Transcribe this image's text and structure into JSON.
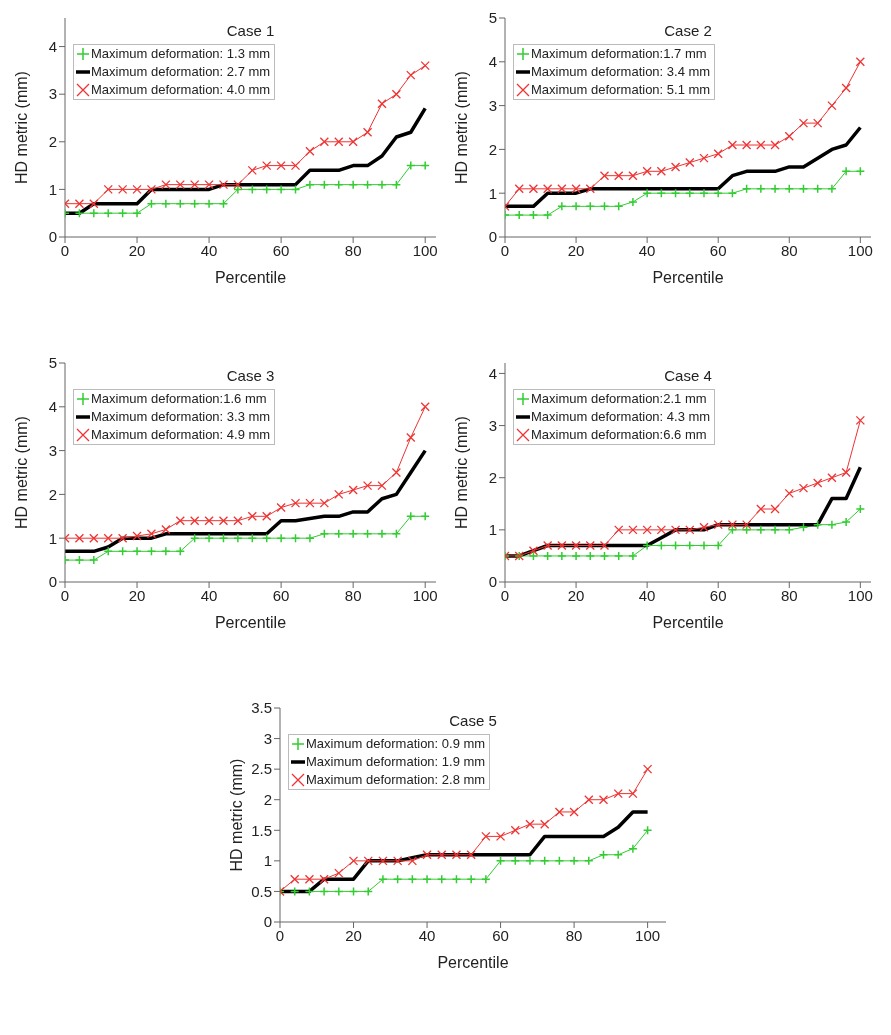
{
  "chart_data": [
    {
      "type": "line",
      "title": "Case 1",
      "xlabel": "Percentile",
      "ylabel": "HD metric (mm)",
      "legend": "top left",
      "xlim": [
        0,
        103
      ],
      "xticks": [
        0,
        20,
        40,
        60,
        80,
        100
      ],
      "ylim": [
        0,
        4.6
      ],
      "yticks": [
        0,
        1,
        2,
        3,
        4
      ],
      "x": [
        0,
        4,
        8,
        12,
        16,
        20,
        24,
        28,
        32,
        36,
        40,
        44,
        48,
        52,
        56,
        60,
        64,
        68,
        72,
        76,
        80,
        84,
        88,
        92,
        96,
        100
      ],
      "series": [
        {
          "name": "Maximum deformation: 1.3 mm",
          "color": "#33cc33",
          "marker": "plus",
          "values": [
            0.5,
            0.5,
            0.5,
            0.5,
            0.5,
            0.5,
            0.7,
            0.7,
            0.7,
            0.7,
            0.7,
            0.7,
            1.0,
            1.0,
            1.0,
            1.0,
            1.0,
            1.1,
            1.1,
            1.1,
            1.1,
            1.1,
            1.1,
            1.1,
            1.5,
            1.5
          ]
        },
        {
          "name": "Maximum deformation: 2.7 mm",
          "color": "#000000",
          "marker": "none",
          "values": [
            0.5,
            0.5,
            0.7,
            0.7,
            0.7,
            0.7,
            1.0,
            1.0,
            1.0,
            1.0,
            1.0,
            1.1,
            1.1,
            1.1,
            1.1,
            1.1,
            1.1,
            1.4,
            1.4,
            1.4,
            1.5,
            1.5,
            1.7,
            2.1,
            2.2,
            2.7
          ]
        },
        {
          "name": "Maximum deformation: 4.0 mm",
          "color": "#ee3333",
          "marker": "cross",
          "values": [
            0.7,
            0.7,
            0.7,
            1.0,
            1.0,
            1.0,
            1.0,
            1.1,
            1.1,
            1.1,
            1.1,
            1.1,
            1.1,
            1.4,
            1.5,
            1.5,
            1.5,
            1.8,
            2.0,
            2.0,
            2.0,
            2.2,
            2.8,
            3.0,
            3.4,
            3.6
          ]
        }
      ]
    },
    {
      "type": "line",
      "title": "Case 2",
      "xlabel": "Percentile",
      "ylabel": "HD metric (mm)",
      "legend": "top left",
      "xlim": [
        0,
        103
      ],
      "xticks": [
        0,
        20,
        40,
        60,
        80,
        100
      ],
      "ylim": [
        0,
        5
      ],
      "yticks": [
        0,
        1,
        2,
        3,
        4,
        5
      ],
      "x": [
        0,
        4,
        8,
        12,
        16,
        20,
        24,
        28,
        32,
        36,
        40,
        44,
        48,
        52,
        56,
        60,
        64,
        68,
        72,
        76,
        80,
        84,
        88,
        92,
        96,
        100
      ],
      "series": [
        {
          "name": "Maximum deformation:1.7 mm",
          "color": "#33cc33",
          "marker": "plus",
          "values": [
            0.5,
            0.5,
            0.5,
            0.5,
            0.7,
            0.7,
            0.7,
            0.7,
            0.7,
            0.8,
            1.0,
            1.0,
            1.0,
            1.0,
            1.0,
            1.0,
            1.0,
            1.1,
            1.1,
            1.1,
            1.1,
            1.1,
            1.1,
            1.1,
            1.5,
            1.5
          ]
        },
        {
          "name": "Maximum deformation: 3.4 mm",
          "color": "#000000",
          "marker": "none",
          "values": [
            0.7,
            0.7,
            0.7,
            1.0,
            1.0,
            1.0,
            1.1,
            1.1,
            1.1,
            1.1,
            1.1,
            1.1,
            1.1,
            1.1,
            1.1,
            1.1,
            1.4,
            1.5,
            1.5,
            1.5,
            1.6,
            1.6,
            1.8,
            2.0,
            2.1,
            2.5
          ]
        },
        {
          "name": "Maximum deformation: 5.1 mm",
          "color": "#ee3333",
          "marker": "cross",
          "values": [
            0.7,
            1.1,
            1.1,
            1.1,
            1.1,
            1.1,
            1.1,
            1.4,
            1.4,
            1.4,
            1.5,
            1.5,
            1.6,
            1.7,
            1.8,
            1.9,
            2.1,
            2.1,
            2.1,
            2.1,
            2.3,
            2.6,
            2.6,
            3.0,
            3.4,
            4.0
          ]
        }
      ]
    },
    {
      "type": "line",
      "title": "Case 3",
      "xlabel": "Percentile",
      "ylabel": "HD metric (mm)",
      "legend": "top left",
      "xlim": [
        0,
        103
      ],
      "xticks": [
        0,
        20,
        40,
        60,
        80,
        100
      ],
      "ylim": [
        0,
        5
      ],
      "yticks": [
        0,
        1,
        2,
        3,
        4,
        5
      ],
      "x": [
        0,
        4,
        8,
        12,
        16,
        20,
        24,
        28,
        32,
        36,
        40,
        44,
        48,
        52,
        56,
        60,
        64,
        68,
        72,
        76,
        80,
        84,
        88,
        92,
        96,
        100
      ],
      "series": [
        {
          "name": "Maximum deformation:1.6 mm",
          "color": "#33cc33",
          "marker": "plus",
          "values": [
            0.5,
            0.5,
            0.5,
            0.7,
            0.7,
            0.7,
            0.7,
            0.7,
            0.7,
            1.0,
            1.0,
            1.0,
            1.0,
            1.0,
            1.0,
            1.0,
            1.0,
            1.0,
            1.1,
            1.1,
            1.1,
            1.1,
            1.1,
            1.1,
            1.5,
            1.5
          ]
        },
        {
          "name": "Maximum deformation: 3.3 mm",
          "color": "#000000",
          "marker": "none",
          "values": [
            0.7,
            0.7,
            0.7,
            0.8,
            1.0,
            1.0,
            1.0,
            1.1,
            1.1,
            1.1,
            1.1,
            1.1,
            1.1,
            1.1,
            1.1,
            1.4,
            1.4,
            1.45,
            1.5,
            1.5,
            1.6,
            1.6,
            1.9,
            2.0,
            2.5,
            3.0
          ]
        },
        {
          "name": "Maximum deformation: 4.9 mm",
          "color": "#ee3333",
          "marker": "cross",
          "values": [
            1.0,
            1.0,
            1.0,
            1.0,
            1.0,
            1.05,
            1.1,
            1.2,
            1.4,
            1.4,
            1.4,
            1.4,
            1.4,
            1.5,
            1.5,
            1.7,
            1.8,
            1.8,
            1.8,
            2.0,
            2.1,
            2.2,
            2.2,
            2.5,
            3.3,
            4.0
          ]
        }
      ]
    },
    {
      "type": "line",
      "title": "Case 4",
      "xlabel": "Percentile",
      "ylabel": "HD metric (mm)",
      "legend": "top left",
      "xlim": [
        0,
        103
      ],
      "xticks": [
        0,
        20,
        40,
        60,
        80,
        100
      ],
      "ylim": [
        0,
        4.2
      ],
      "yticks": [
        0,
        1,
        2,
        3,
        4
      ],
      "x": [
        0,
        4,
        8,
        12,
        16,
        20,
        24,
        28,
        32,
        36,
        40,
        44,
        48,
        52,
        56,
        60,
        64,
        68,
        72,
        76,
        80,
        84,
        88,
        92,
        96,
        100
      ],
      "series": [
        {
          "name": "Maximum deformation:2.1 mm",
          "color": "#33cc33",
          "marker": "plus",
          "values": [
            0.5,
            0.5,
            0.5,
            0.5,
            0.5,
            0.5,
            0.5,
            0.5,
            0.5,
            0.5,
            0.7,
            0.7,
            0.7,
            0.7,
            0.7,
            0.7,
            1.0,
            1.0,
            1.0,
            1.0,
            1.0,
            1.05,
            1.1,
            1.1,
            1.15,
            1.4
          ]
        },
        {
          "name": "Maximum deformation: 4.3 mm",
          "color": "#000000",
          "marker": "none",
          "values": [
            0.5,
            0.5,
            0.6,
            0.7,
            0.7,
            0.7,
            0.7,
            0.7,
            0.7,
            0.7,
            0.7,
            0.85,
            1.0,
            1.0,
            1.0,
            1.1,
            1.1,
            1.1,
            1.1,
            1.1,
            1.1,
            1.1,
            1.1,
            1.6,
            1.6,
            2.2
          ]
        },
        {
          "name": "Maximum deformation:6.6 mm",
          "color": "#ee3333",
          "marker": "cross",
          "values": [
            0.5,
            0.5,
            0.6,
            0.7,
            0.7,
            0.7,
            0.7,
            0.7,
            1.0,
            1.0,
            1.0,
            1.0,
            1.0,
            1.0,
            1.05,
            1.1,
            1.1,
            1.1,
            1.4,
            1.4,
            1.7,
            1.8,
            1.9,
            2.0,
            2.1,
            3.1
          ]
        }
      ]
    },
    {
      "type": "line",
      "title": "Case 5",
      "xlabel": "Percentile",
      "ylabel": "HD metric (mm)",
      "legend": "top left",
      "xlim": [
        0,
        105
      ],
      "xticks": [
        0,
        20,
        40,
        60,
        80,
        100
      ],
      "ylim": [
        0,
        3.5
      ],
      "yticks": [
        0,
        0.5,
        1,
        1.5,
        2,
        2.5,
        3,
        3.5
      ],
      "x": [
        0,
        4,
        8,
        12,
        16,
        20,
        24,
        28,
        32,
        36,
        40,
        44,
        48,
        52,
        56,
        60,
        64,
        68,
        72,
        76,
        80,
        84,
        88,
        92,
        96,
        100
      ],
      "series": [
        {
          "name": "Maximum deformation: 0.9 mm",
          "color": "#33cc33",
          "marker": "plus",
          "values": [
            0.5,
            0.5,
            0.5,
            0.5,
            0.5,
            0.5,
            0.5,
            0.7,
            0.7,
            0.7,
            0.7,
            0.7,
            0.7,
            0.7,
            0.7,
            1.0,
            1.0,
            1.0,
            1.0,
            1.0,
            1.0,
            1.0,
            1.1,
            1.1,
            1.2,
            1.5
          ]
        },
        {
          "name": "Maximum deformation: 1.9 mm",
          "color": "#000000",
          "marker": "none",
          "values": [
            0.5,
            0.5,
            0.5,
            0.7,
            0.7,
            0.7,
            1.0,
            1.0,
            1.0,
            1.05,
            1.1,
            1.1,
            1.1,
            1.1,
            1.1,
            1.1,
            1.1,
            1.1,
            1.4,
            1.4,
            1.4,
            1.4,
            1.4,
            1.55,
            1.8,
            1.8
          ]
        },
        {
          "name": "Maximum deformation: 2.8 mm",
          "color": "#ee3333",
          "marker": "cross",
          "values": [
            0.5,
            0.7,
            0.7,
            0.7,
            0.8,
            1.0,
            1.0,
            1.0,
            1.0,
            1.0,
            1.1,
            1.1,
            1.1,
            1.1,
            1.4,
            1.4,
            1.5,
            1.6,
            1.6,
            1.8,
            1.8,
            2.0,
            2.0,
            2.1,
            2.1,
            2.5
          ]
        }
      ]
    }
  ]
}
